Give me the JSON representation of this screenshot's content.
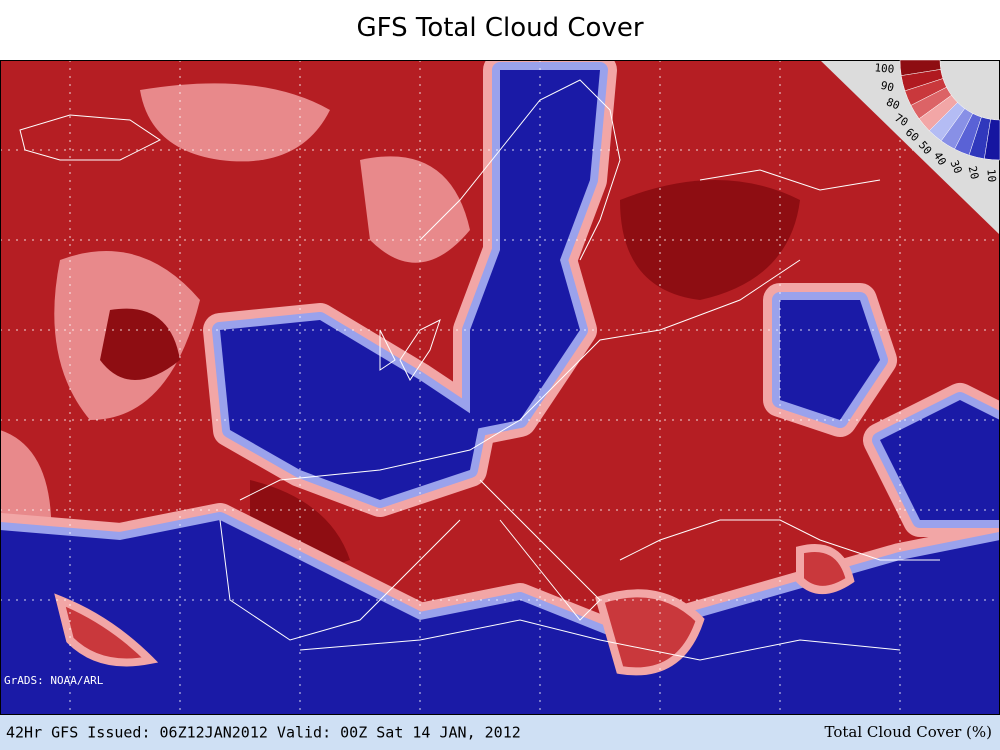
{
  "title": "GFS Total Cloud Cover",
  "credit": "GrADS: NOAA/ARL",
  "footer": {
    "left": "42Hr GFS Issued: 06Z12JAN2012 Valid: 00Z Sat 14 JAN, 2012",
    "right": "Total Cloud Cover (%)"
  },
  "legend": {
    "levels": [
      100,
      90,
      80,
      70,
      60,
      50,
      40,
      30,
      20,
      10
    ],
    "colors": [
      "#8e0d12",
      "#b01a20",
      "#c9383c",
      "#dc6366",
      "#f2a6a6",
      "#b4bcf4",
      "#8890e6",
      "#5a62d6",
      "#3038bc",
      "#1616a0"
    ]
  }
}
